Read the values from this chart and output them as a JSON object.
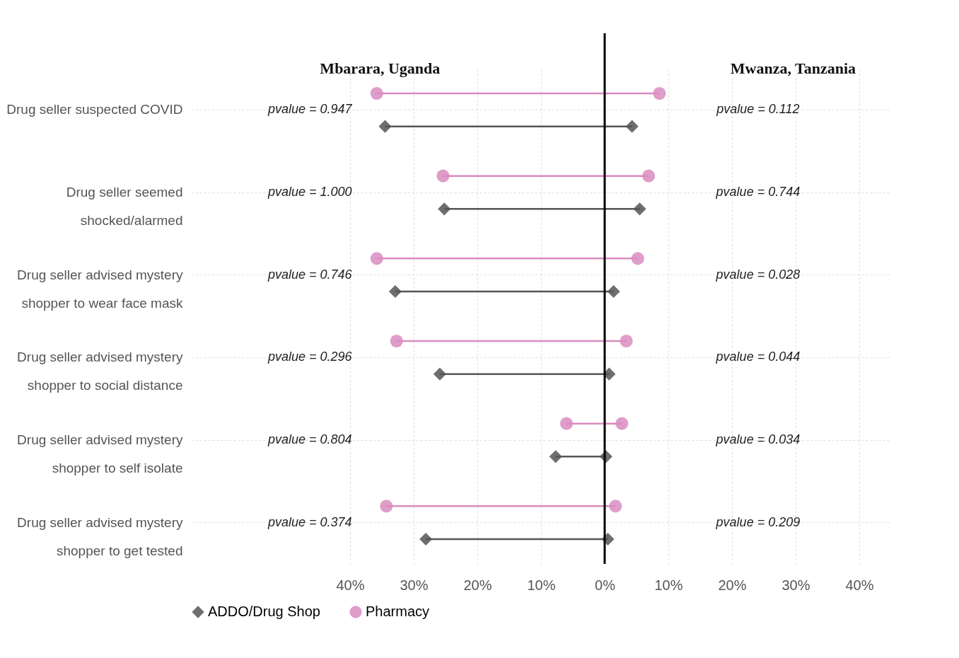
{
  "chart_data": {
    "type": "bar",
    "orientation": "horizontal",
    "categories": [
      "Drug seller suspected COVID",
      "Drug seller seemed shocked/alarmed",
      "Drug seller advised mystery shopper to wear face mask",
      "Drug seller advised mystery shopper to social distance",
      "Drug seller advised mystery shopper to self isolate",
      "Drug seller advised mystery shopper to get tested"
    ],
    "series": [
      {
        "name": "ADDO/Drug Shop",
        "color": "#555555",
        "marker": "diamond",
        "base": [
          -34.5,
          -25.2,
          -32.9,
          -25.9,
          -7.7,
          -28.1
        ],
        "values": [
          38.8,
          30.7,
          34.3,
          26.6,
          7.9,
          28.6
        ]
      },
      {
        "name": "Pharmacy",
        "color": "#d98cbf",
        "marker": "circle",
        "base": [
          -35.8,
          -25.4,
          -35.8,
          -32.7,
          -6.0,
          -34.3
        ],
        "values": [
          44.4,
          32.3,
          41.0,
          36.1,
          8.7,
          36.0
        ]
      }
    ],
    "xlim": [
      -65,
      45
    ],
    "xticks": [
      {
        "value": -40,
        "label": "40%"
      },
      {
        "value": -30,
        "label": "30%"
      },
      {
        "value": -20,
        "label": "20%"
      },
      {
        "value": -10,
        "label": "10%"
      },
      {
        "value": 0,
        "label": "0%"
      },
      {
        "value": 10,
        "label": "10%"
      },
      {
        "value": 20,
        "label": "20%"
      },
      {
        "value": 30,
        "label": "30%"
      },
      {
        "value": 40,
        "label": "40%"
      }
    ],
    "grid": true,
    "legend": "bottom",
    "ref_lines": [
      {
        "axis": "x",
        "value": 0,
        "color": "#000000"
      }
    ],
    "annotations": [
      "Mbarara, Uganda",
      "Mwanza, Tanzania",
      "pvalue = 0.947",
      "pvalue = 0.112",
      "pvalue = 1.000",
      "pvalue = 0.744",
      "pvalue = 0.746",
      "pvalue = 0.028",
      "pvalue = 0.296",
      "pvalue = 0.044",
      "pvalue = 0.804",
      "pvalue = 0.034",
      "pvalue = 0.374",
      "pvalue = 0.209"
    ]
  }
}
